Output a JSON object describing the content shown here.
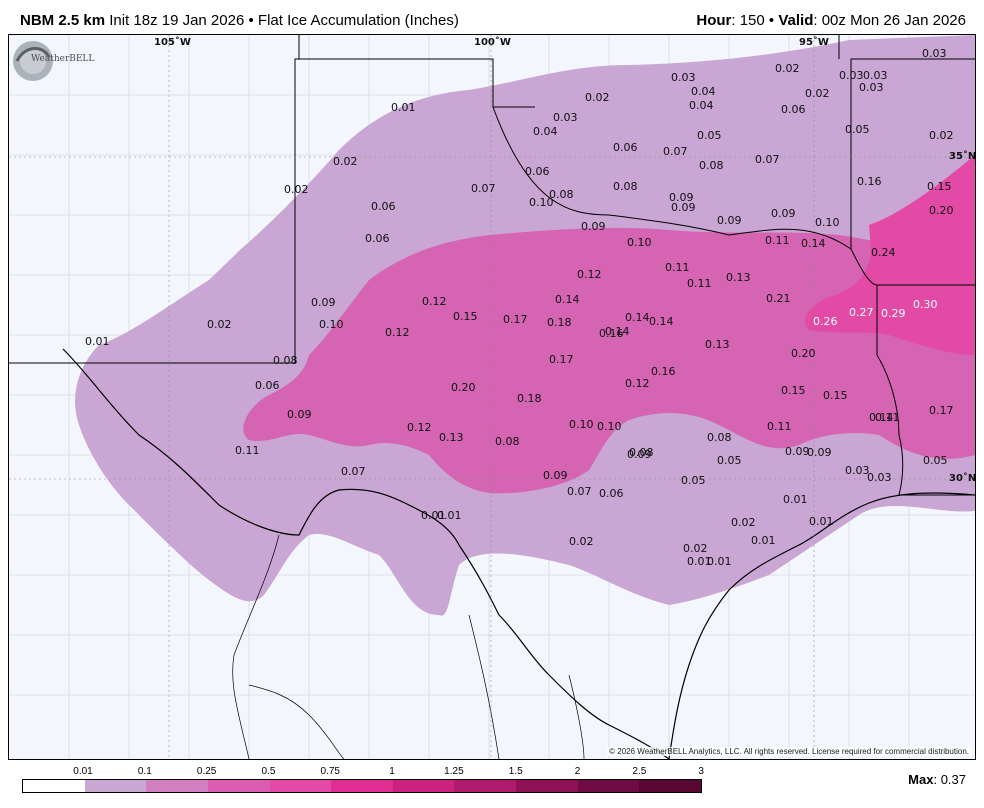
{
  "header": {
    "model": "NBM 2.5 km",
    "init": "Init 18z 19 Jan 2026",
    "separator": "•",
    "product": "Flat Ice Accumulation (Inches)",
    "hour_label": "Hour",
    "hour_value": "150",
    "valid_label": "Valid",
    "valid_value": "00z Mon 26 Jan 2026"
  },
  "map": {
    "longitude_labels": [
      "105˚W",
      "100˚W",
      "95˚W"
    ],
    "latitude_labels": [
      "35˚N",
      "30˚N"
    ],
    "copyright": "© 2026 WeatherBELL Analytics, LLC. All rights reserved. License required for commercial distribution.",
    "logo_text": "WeatherBELL",
    "colors": {
      "background": "#f3f7fd",
      "light_band": "#c9a6d3",
      "medium_band": "#d565b3",
      "high_band": "#e24aa5"
    },
    "value_labels": [
      {
        "text": "0.03",
        "white": false
      },
      {
        "text": "0.02",
        "white": false
      },
      {
        "text": "0.03",
        "white": false
      },
      {
        "text": "0.03",
        "white": false
      },
      {
        "text": "0.03",
        "white": false
      },
      {
        "text": "0.02",
        "white": false
      },
      {
        "text": "0.02",
        "white": false
      },
      {
        "text": "0.03",
        "white": false
      },
      {
        "text": "0.04",
        "white": false
      },
      {
        "text": "0.04",
        "white": false
      },
      {
        "text": "0.01",
        "white": false
      },
      {
        "text": "0.03",
        "white": false
      },
      {
        "text": "0.04",
        "white": false
      },
      {
        "text": "0.06",
        "white": false
      },
      {
        "text": "0.05",
        "white": false
      },
      {
        "text": "0.05",
        "white": false
      },
      {
        "text": "0.02",
        "white": false
      },
      {
        "text": "0.06",
        "white": false
      },
      {
        "text": "0.07",
        "white": false
      },
      {
        "text": "0.07",
        "white": false
      },
      {
        "text": "0.08",
        "white": false
      },
      {
        "text": "0.02",
        "white": false
      },
      {
        "text": "0.06",
        "white": false
      },
      {
        "text": "0.16",
        "white": false
      },
      {
        "text": "0.15",
        "white": false
      },
      {
        "text": "0.02",
        "white": false
      },
      {
        "text": "0.07",
        "white": false
      },
      {
        "text": "0.08",
        "white": false
      },
      {
        "text": "0.08",
        "white": false
      },
      {
        "text": "0.09",
        "white": false
      },
      {
        "text": "0.10",
        "white": false
      },
      {
        "text": "0.09",
        "white": false
      },
      {
        "text": "0.06",
        "white": false
      },
      {
        "text": "0.09",
        "white": false
      },
      {
        "text": "0.09",
        "white": false
      },
      {
        "text": "0.20",
        "white": false
      },
      {
        "text": "0.10",
        "white": false
      },
      {
        "text": "0.06",
        "white": false
      },
      {
        "text": "0.09",
        "white": false
      },
      {
        "text": "0.10",
        "white": false
      },
      {
        "text": "0.11",
        "white": false
      },
      {
        "text": "0.14",
        "white": false
      },
      {
        "text": "0.24",
        "white": false
      },
      {
        "text": "0.11",
        "white": false
      },
      {
        "text": "0.12",
        "white": false
      },
      {
        "text": "0.13",
        "white": false
      },
      {
        "text": "0.11",
        "white": false
      },
      {
        "text": "0.09",
        "white": false
      },
      {
        "text": "0.12",
        "white": false
      },
      {
        "text": "0.14",
        "white": false
      },
      {
        "text": "0.14",
        "white": false
      },
      {
        "text": "0.21",
        "white": false
      },
      {
        "text": "0.02",
        "white": false
      },
      {
        "text": "0.10",
        "white": false
      },
      {
        "text": "0.12",
        "white": false
      },
      {
        "text": "0.15",
        "white": false
      },
      {
        "text": "0.17",
        "white": false
      },
      {
        "text": "0.18",
        "white": false
      },
      {
        "text": "0.14",
        "white": false
      },
      {
        "text": "0.14",
        "white": false
      },
      {
        "text": "0.26",
        "white": true
      },
      {
        "text": "0.27",
        "white": true
      },
      {
        "text": "0.29",
        "white": true
      },
      {
        "text": "0.30",
        "white": true
      },
      {
        "text": "0.01",
        "white": false
      },
      {
        "text": "0.16",
        "white": false
      },
      {
        "text": "0.13",
        "white": false
      },
      {
        "text": "0.08",
        "white": false
      },
      {
        "text": "0.17",
        "white": false
      },
      {
        "text": "0.20",
        "white": false
      },
      {
        "text": "0.06",
        "white": false
      },
      {
        "text": "0.20",
        "white": false
      },
      {
        "text": "0.12",
        "white": false
      },
      {
        "text": "0.16",
        "white": false
      },
      {
        "text": "0.15",
        "white": false
      },
      {
        "text": "0.18",
        "white": false
      },
      {
        "text": "0.15",
        "white": false
      },
      {
        "text": "0.17",
        "white": false
      },
      {
        "text": "0.11",
        "white": false
      },
      {
        "text": "0.09",
        "white": false
      },
      {
        "text": "0.14",
        "white": false
      },
      {
        "text": "0.12",
        "white": false
      },
      {
        "text": "0.13",
        "white": false
      },
      {
        "text": "0.10",
        "white": false
      },
      {
        "text": "0.10",
        "white": false
      },
      {
        "text": "0.11",
        "white": false
      },
      {
        "text": "0.08",
        "white": false
      },
      {
        "text": "0.09",
        "white": false
      },
      {
        "text": "0.08",
        "white": false
      },
      {
        "text": "0.08",
        "white": false
      },
      {
        "text": "0.09",
        "white": false
      },
      {
        "text": "0.09",
        "white": false
      },
      {
        "text": "0.11",
        "white": false
      },
      {
        "text": "0.05",
        "white": false
      },
      {
        "text": "0.05",
        "white": false
      },
      {
        "text": "0.07",
        "white": false
      },
      {
        "text": "0.03",
        "white": false
      },
      {
        "text": "0.03",
        "white": false
      },
      {
        "text": "0.09",
        "white": false
      },
      {
        "text": "0.07",
        "white": false
      },
      {
        "text": "0.06",
        "white": false
      },
      {
        "text": "0.05",
        "white": false
      },
      {
        "text": "0.01",
        "white": false
      },
      {
        "text": "0.01",
        "white": false
      },
      {
        "text": "0.01",
        "white": false
      },
      {
        "text": "0.01",
        "white": false
      },
      {
        "text": "0.02",
        "white": false
      },
      {
        "text": "0.02",
        "white": false
      },
      {
        "text": "0.01",
        "white": false
      },
      {
        "text": "0.02",
        "white": false
      },
      {
        "text": "0.01",
        "white": false
      },
      {
        "text": "0.01",
        "white": false
      }
    ]
  },
  "legend": {
    "labels": [
      "0.01",
      "0.1",
      "0.25",
      "0.5",
      "0.75",
      "1",
      "1.25",
      "1.5",
      "2",
      "2.5",
      "3"
    ],
    "colors": [
      "#ffffff",
      "#c9a6d3",
      "#d27fbf",
      "#dc5cb0",
      "#e24aa5",
      "#df2f93",
      "#c9237f",
      "#b01a6c",
      "#8f1257",
      "#700c44",
      "#590833"
    ]
  },
  "max": {
    "label": "Max",
    "value": "0.37"
  }
}
